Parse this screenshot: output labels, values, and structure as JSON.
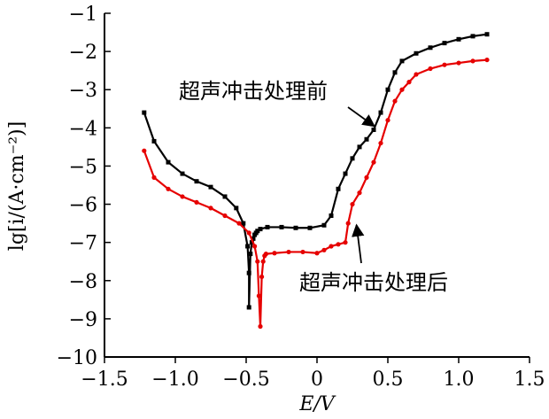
{
  "chart_data": {
    "type": "line",
    "title": "",
    "xlabel": "E/V",
    "ylabel": "lg[i/(A·cm⁻²)]",
    "xlim": [
      -1.5,
      1.5
    ],
    "ylim": [
      -10,
      -1
    ],
    "xticks": [
      -1.5,
      -1.0,
      -0.5,
      0,
      0.5,
      1.0,
      1.5
    ],
    "xtick_labels": [
      "−1.5",
      "−1.0",
      "−0.5",
      "0",
      "0.5",
      "1.0",
      "1.5"
    ],
    "yticks": [
      -1,
      -2,
      -3,
      -4,
      -5,
      -6,
      -7,
      -8,
      -9,
      -10
    ],
    "ytick_labels": [
      "−1",
      "−2",
      "−3",
      "−4",
      "−5",
      "−6",
      "−7",
      "−8",
      "−9",
      "−10"
    ],
    "series": [
      {
        "name": "超声冲击处理前",
        "color": "#000000",
        "marker": "square",
        "x": [
          -1.22,
          -1.15,
          -1.05,
          -0.95,
          -0.85,
          -0.75,
          -0.65,
          -0.57,
          -0.52,
          -0.49,
          -0.48,
          -0.48,
          -0.47,
          -0.46,
          -0.45,
          -0.44,
          -0.43,
          -0.42,
          -0.4,
          -0.35,
          -0.25,
          -0.15,
          -0.05,
          0.05,
          0.1,
          0.15,
          0.2,
          0.25,
          0.3,
          0.35,
          0.4,
          0.45,
          0.5,
          0.55,
          0.6,
          0.7,
          0.8,
          0.9,
          1.0,
          1.1,
          1.2
        ],
        "y": [
          -3.6,
          -4.35,
          -4.9,
          -5.2,
          -5.4,
          -5.55,
          -5.8,
          -6.1,
          -6.5,
          -7.1,
          -7.8,
          -8.7,
          -7.3,
          -7.0,
          -6.9,
          -6.8,
          -6.75,
          -6.7,
          -6.65,
          -6.6,
          -6.6,
          -6.62,
          -6.62,
          -6.55,
          -6.3,
          -5.6,
          -5.2,
          -4.8,
          -4.5,
          -4.3,
          -4.05,
          -3.6,
          -3.0,
          -2.55,
          -2.25,
          -2.05,
          -1.9,
          -1.78,
          -1.68,
          -1.6,
          -1.55
        ]
      },
      {
        "name": "超声冲击处理后",
        "color": "#e60000",
        "marker": "circle",
        "x": [
          -1.22,
          -1.15,
          -1.05,
          -0.95,
          -0.85,
          -0.75,
          -0.65,
          -0.55,
          -0.48,
          -0.44,
          -0.42,
          -0.41,
          -0.4,
          -0.39,
          -0.38,
          -0.37,
          -0.36,
          -0.3,
          -0.2,
          -0.1,
          0,
          0.05,
          0.1,
          0.15,
          0.2,
          0.22,
          0.25,
          0.3,
          0.35,
          0.4,
          0.45,
          0.5,
          0.55,
          0.6,
          0.65,
          0.7,
          0.8,
          0.9,
          1.0,
          1.1,
          1.2
        ],
        "y": [
          -4.6,
          -5.3,
          -5.6,
          -5.8,
          -5.95,
          -6.1,
          -6.3,
          -6.5,
          -6.75,
          -7.1,
          -7.5,
          -8.4,
          -9.2,
          -7.9,
          -7.5,
          -7.35,
          -7.3,
          -7.28,
          -7.25,
          -7.25,
          -7.28,
          -7.2,
          -7.1,
          -7.05,
          -7.0,
          -6.5,
          -6.0,
          -5.7,
          -5.3,
          -4.9,
          -4.4,
          -3.8,
          -3.3,
          -3.0,
          -2.8,
          -2.6,
          -2.45,
          -2.35,
          -2.3,
          -2.25,
          -2.22
        ]
      }
    ],
    "annotations": [
      {
        "text": "超声冲击处理前",
        "series": 0,
        "at_x": 0.38,
        "at_y": -4.05
      },
      {
        "text": "超声冲击处理后",
        "series": 1,
        "at_x": 0.26,
        "at_y": -6.45
      }
    ]
  }
}
